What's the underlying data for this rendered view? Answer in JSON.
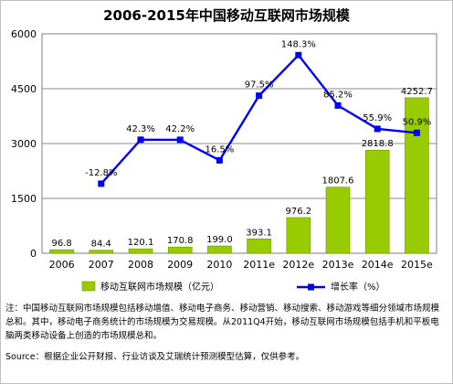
{
  "title": "2006-2015年中国移动互联网市场规模",
  "chart_data": {
    "type": "bar",
    "categories": [
      "2006",
      "2007",
      "2008",
      "2009",
      "2010",
      "2011e",
      "2012e",
      "2013e",
      "2014e",
      "2015e"
    ],
    "series": [
      {
        "name": "移动互联网市场规模（亿元）",
        "type": "bar",
        "values": [
          96.8,
          84.4,
          120.1,
          170.8,
          199.0,
          393.1,
          976.2,
          1807.6,
          2818.8,
          4252.7
        ],
        "labels": [
          "96.8",
          "84.4",
          "120.1",
          "170.8",
          "199.0",
          "393.1",
          "976.2",
          "1807.6",
          "2818.8",
          "4252.7"
        ],
        "color": "#99cc00"
      },
      {
        "name": "增长率（%）",
        "type": "line",
        "values": [
          null,
          -12.8,
          42.3,
          42.2,
          16.5,
          97.5,
          148.3,
          85.2,
          55.9,
          50.9
        ],
        "labels": [
          "",
          "-12.8%",
          "42.3%",
          "42.2%",
          "16.5%",
          "97.5%",
          "148.3%",
          "85.2%",
          "55.9%",
          "50.9%"
        ],
        "color": "#0000ff"
      }
    ],
    "y_ticks": [
      "0",
      "1500",
      "3000",
      "4500",
      "6000"
    ],
    "ylim": [
      0,
      6000
    ],
    "secondary_ylim": [
      -100,
      175
    ],
    "grid": true,
    "legend": "bottom"
  },
  "notes": {
    "line1": "注：中国移动互联网市场规模包括移动增值、移动电子商务、移动营销、移动搜索、移动游戏等细分领域市场规模总和。其中，移动电子商务统计的市场规模为交易规模。从2011Q4开始，移动互联网市场规模包括手机和平板电脑两类移动设备上创造的市场规模总和。",
    "source": "Source：根据企业公开财报、行业访谈及艾瑞统计预测模型估算，仅供参考。"
  }
}
